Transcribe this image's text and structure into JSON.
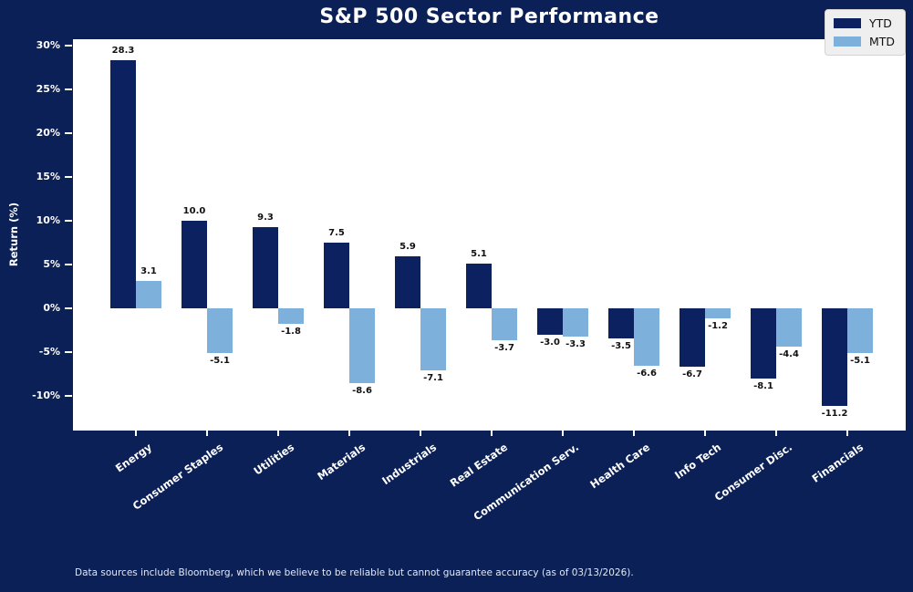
{
  "title": "S&P 500 Sector Performance",
  "footer": "Data sources include Bloomberg, which we believe to be reliable but cannot guarantee accuracy (as of 03/13/2026).",
  "colors": {
    "background": "#0a2056",
    "plot_background": "#ffffff",
    "ytd_bar": "#0b2160",
    "mtd_bar": "#7eb0dc",
    "title_text": "#ffffff",
    "axis_text": "#ffffff",
    "tick_mark": "#ffffff",
    "data_label": "#111111",
    "legend_background": "#efefef",
    "legend_border": "#d4d4d4",
    "legend_text": "#111111",
    "footer_text": "#e2e9f6"
  },
  "legend": {
    "items": [
      {
        "label": "YTD",
        "color_key": "ytd_bar"
      },
      {
        "label": "MTD",
        "color_key": "mtd_bar"
      }
    ]
  },
  "chart_data": {
    "type": "bar",
    "title": "S&P 500 Sector Performance",
    "xlabel": "",
    "ylabel": "Return (%)",
    "grid": false,
    "legend_position": "upper right",
    "data_labels_decimals": 1,
    "ylim": [
      -14,
      30.75
    ],
    "yticks": [
      {
        "value": 30,
        "label": "30%"
      },
      {
        "value": 25,
        "label": "25%"
      },
      {
        "value": 20,
        "label": "20%"
      },
      {
        "value": 15,
        "label": "15%"
      },
      {
        "value": 10,
        "label": "10%"
      },
      {
        "value": 5,
        "label": "5%"
      },
      {
        "value": 0,
        "label": "0%"
      },
      {
        "value": -5,
        "label": "-5%"
      },
      {
        "value": -10,
        "label": "-10%"
      }
    ],
    "categories": [
      "Energy",
      "Consumer Staples",
      "Utilities",
      "Materials",
      "Industrials",
      "Real Estate",
      "Communication Serv.",
      "Health Care",
      "Info Tech",
      "Consumer Disc.",
      "Financials"
    ],
    "series": [
      {
        "name": "YTD",
        "values": [
          28.3,
          10.0,
          9.3,
          7.5,
          5.9,
          5.1,
          -3.0,
          -3.5,
          -6.7,
          -8.1,
          -11.2
        ]
      },
      {
        "name": "MTD",
        "values": [
          3.1,
          -5.1,
          -1.8,
          -8.6,
          -7.1,
          -3.7,
          -3.3,
          -6.6,
          -1.2,
          -4.4,
          -5.1
        ]
      }
    ]
  }
}
